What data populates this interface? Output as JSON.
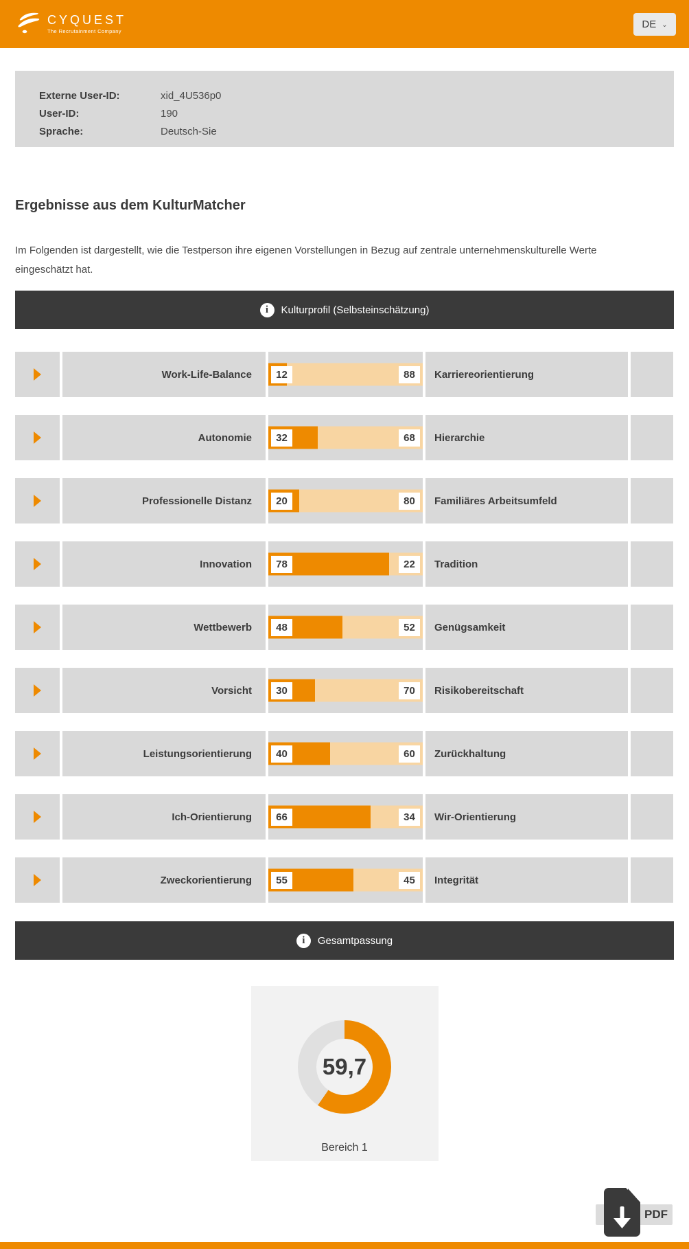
{
  "header": {
    "brand": "CYQUEST",
    "tagline": "The Recrutainment Company",
    "language": "DE"
  },
  "user_info": {
    "rows": [
      {
        "label": "Externe User-ID:",
        "value": "xid_4U536p0"
      },
      {
        "label": "User-ID:",
        "value": "190"
      },
      {
        "label": "Sprache:",
        "value": "Deutsch-Sie"
      }
    ]
  },
  "page": {
    "title": "Ergebnisse aus dem KulturMatcher",
    "intro_line1": "Im Folgenden ist dargestellt, wie die Testperson ihre eigenen Vorstellungen in Bezug auf zentrale unternehmenskulturelle Werte",
    "intro_line2": "eingeschätzt hat."
  },
  "colors": {
    "accent": "#ee8a00",
    "accent_light": "#f8d5a2",
    "cell_gray": "#d9d9d9",
    "dark_bar": "#3a3a3a",
    "donut_track": "#e0e0e0",
    "card_bg": "#f2f2f2"
  },
  "pdf": {
    "label": "PDF"
  },
  "chart_data": [
    {
      "type": "bar",
      "subtype": "bipolar-horizontal-pairs",
      "title": "Kulturprofil (Selbsteinschätzung)",
      "xlim": [
        0,
        100
      ],
      "pairs": [
        {
          "left_label": "Work-Life-Balance",
          "left_value": 12,
          "right_value": 88,
          "right_label": "Karriereorientierung"
        },
        {
          "left_label": "Autonomie",
          "left_value": 32,
          "right_value": 68,
          "right_label": "Hierarchie"
        },
        {
          "left_label": "Professionelle Distanz",
          "left_value": 20,
          "right_value": 80,
          "right_label": "Familiäres Arbeitsumfeld"
        },
        {
          "left_label": "Innovation",
          "left_value": 78,
          "right_value": 22,
          "right_label": "Tradition"
        },
        {
          "left_label": "Wettbewerb",
          "left_value": 48,
          "right_value": 52,
          "right_label": "Genügsamkeit"
        },
        {
          "left_label": "Vorsicht",
          "left_value": 30,
          "right_value": 70,
          "right_label": "Risikobereitschaft"
        },
        {
          "left_label": "Leistungsorientierung",
          "left_value": 40,
          "right_value": 60,
          "right_label": "Zurückhaltung"
        },
        {
          "left_label": "Ich-Orientierung",
          "left_value": 66,
          "right_value": 34,
          "right_label": "Wir-Orientierung"
        },
        {
          "left_label": "Zweckorientierung",
          "left_value": 55,
          "right_value": 45,
          "right_label": "Integrität"
        }
      ]
    },
    {
      "type": "pie",
      "subtype": "donut-gauge",
      "title": "Gesamtpassung",
      "value": 59.7,
      "max": 100,
      "display_value": "59,7",
      "label": "Bereich 1"
    }
  ]
}
